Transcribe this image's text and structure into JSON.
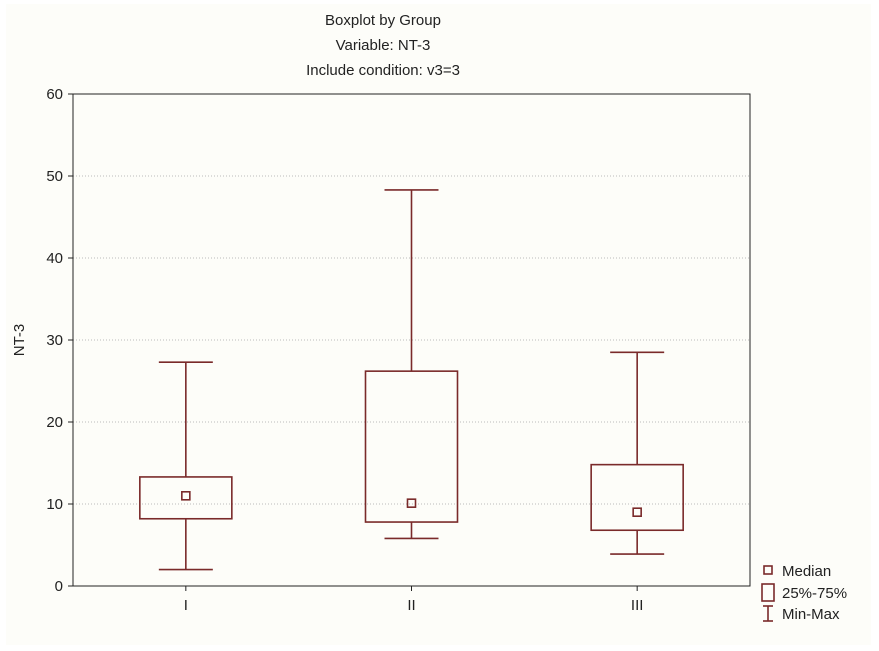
{
  "chart_data": {
    "type": "boxplot",
    "title_lines": [
      "Boxplot by Group",
      "Variable: NT-3",
      "Include condition: v3=3"
    ],
    "xlabel": "",
    "ylabel": "NT-3",
    "ylim": [
      0,
      60
    ],
    "yticks": [
      0,
      10,
      20,
      30,
      40,
      50,
      60
    ],
    "grid": true,
    "categories": [
      "I",
      "II",
      "III"
    ],
    "boxes": [
      {
        "category": "I",
        "min": 2.0,
        "q1": 8.2,
        "median": 11.0,
        "q3": 13.3,
        "max": 27.3
      },
      {
        "category": "II",
        "min": 5.8,
        "q1": 7.8,
        "median": 10.1,
        "q3": 26.2,
        "max": 48.3
      },
      {
        "category": "III",
        "min": 3.9,
        "q1": 6.8,
        "median": 9.0,
        "q3": 14.8,
        "max": 28.5
      }
    ],
    "legend": {
      "placement": "bottom-right",
      "entries": [
        "Median",
        "25%-75%",
        "Min-Max"
      ]
    },
    "colors": {
      "box": "#7a2a2a",
      "axis": "#222222",
      "grid": "#bbbbbb"
    }
  }
}
